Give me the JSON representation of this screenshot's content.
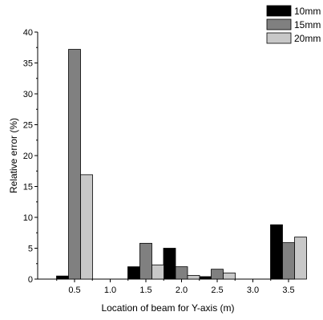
{
  "chart_data": {
    "type": "bar",
    "title": "",
    "xlabel": "Location of beam for Y-axis (m)",
    "ylabel": "Relative error (%)",
    "ylim": [
      0,
      40
    ],
    "y_ticks": [
      "0",
      "5",
      "10",
      "15",
      "20",
      "25",
      "30",
      "35",
      "40"
    ],
    "categories": [
      "0.5",
      "1.0",
      "1.5",
      "2.0",
      "2.5",
      "3.0",
      "3.5"
    ],
    "series": [
      {
        "name": "10mm",
        "color": "#000000",
        "values": [
          0.5,
          0,
          2.0,
          5.0,
          0.4,
          0,
          8.8
        ]
      },
      {
        "name": "15mm",
        "color": "#808080",
        "values": [
          37.2,
          0,
          5.8,
          2.0,
          1.6,
          0,
          5.9
        ]
      },
      {
        "name": "20mm",
        "color": "#c8c8c8",
        "values": [
          16.9,
          0,
          2.3,
          0.6,
          1.0,
          0,
          6.8
        ]
      }
    ],
    "legend_position": "top-right",
    "grid": false
  }
}
